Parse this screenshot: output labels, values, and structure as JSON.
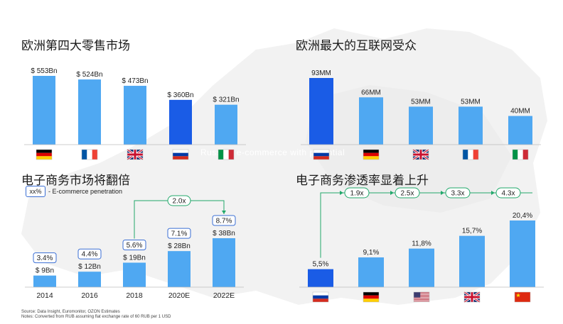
{
  "titles": {
    "t1": "欧洲第四大零售市场",
    "t2": "欧洲最大的互联网受众",
    "t3": "电子商务市场将翻倍",
    "t4": "电子商务渗透率显着上升"
  },
  "legend": {
    "box": "xx%",
    "text": "- E-commerce penetration"
  },
  "watermark": "Russian e-commerce with potential",
  "source": [
    "Source: Data Insight, Euromonitor, OZON Estimates",
    "Notes: Converted from RUB assuming flat exchange rate of 60 RUB per 1 USD"
  ],
  "colors": {
    "bar": "#4fa8f2",
    "highlight": "#1a5ce6",
    "growth": "#22a86b",
    "badge": "#3b6fd4"
  },
  "chart_data": [
    {
      "type": "bar",
      "title": "欧洲第四大零售市场",
      "categories": [
        "germany-flag",
        "france-flag",
        "uk-flag",
        "russia-flag",
        "italy-flag"
      ],
      "values": [
        553,
        524,
        473,
        360,
        321
      ],
      "labels": [
        "$ 553Bn",
        "$ 524Bn",
        "$ 473Bn",
        "$ 360Bn",
        "$ 321Bn"
      ],
      "highlight": 3
    },
    {
      "type": "bar",
      "title": "欧洲最大的互联网受众",
      "categories": [
        "russia-flag",
        "germany-flag",
        "uk-flag",
        "france-flag",
        "italy-flag"
      ],
      "values": [
        93,
        66,
        53,
        53,
        40
      ],
      "labels": [
        "93MM",
        "66MM",
        "53MM",
        "53MM",
        "40MM"
      ],
      "highlight": 0
    },
    {
      "type": "bar",
      "title": "电子商务市场将翻倍",
      "categories": [
        "2014",
        "2016",
        "2018",
        "2020E",
        "2022E"
      ],
      "values": [
        9,
        12,
        19,
        28,
        38
      ],
      "labels": [
        "$ 9Bn",
        "$ 12Bn",
        "$ 19Bn",
        "$ 28Bn",
        "$ 38Bn"
      ],
      "penetration": [
        "3.4%",
        "4.4%",
        "5.6%",
        "7.1%",
        "8.7%"
      ],
      "growth": {
        "label": "2.0x",
        "from": 2,
        "to": 4
      },
      "highlight": -1
    },
    {
      "type": "bar",
      "title": "电子商务渗透率显着上升",
      "categories": [
        "russia-flag",
        "germany-flag",
        "usa-flag",
        "uk-flag",
        "china-flag"
      ],
      "values": [
        5.5,
        9.1,
        11.8,
        15.7,
        20.4
      ],
      "labels": [
        "5,5%",
        "9,1%",
        "11,8%",
        "15,7%",
        "20,4%"
      ],
      "multipliers": [
        "1.9x",
        "2.5x",
        "3.3x",
        "4.3x"
      ],
      "highlight": 0
    }
  ]
}
